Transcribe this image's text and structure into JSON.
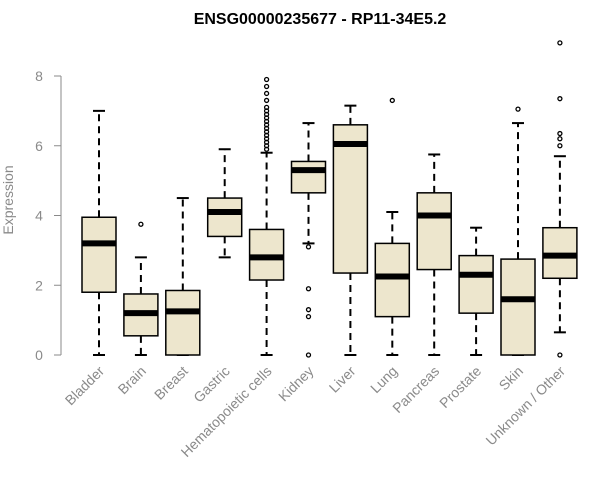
{
  "chart_data": {
    "type": "boxplot",
    "title": "ENSG00000235677 - RP11-34E5.2",
    "xlabel": "",
    "ylabel": "Expression",
    "ylim": [
      0,
      8
    ],
    "yticks": [
      0,
      2,
      4,
      6,
      8
    ],
    "categories": [
      "Bladder",
      "Brain",
      "Breast",
      "Gastric",
      "Hematopoietic cells",
      "Kidney",
      "Liver",
      "Lung",
      "Pancreas",
      "Prostate",
      "Skin",
      "Unknown / Other"
    ],
    "boxes": [
      {
        "label": "Bladder",
        "whisker_low": 0.0,
        "q1": 1.8,
        "median": 3.2,
        "q3": 3.95,
        "whisker_high": 7.0,
        "outliers": []
      },
      {
        "label": "Brain",
        "whisker_low": 0.0,
        "q1": 0.55,
        "median": 1.2,
        "q3": 1.75,
        "whisker_high": 2.8,
        "outliers": [
          3.75
        ]
      },
      {
        "label": "Breast",
        "whisker_low": 0.0,
        "q1": 0.0,
        "median": 1.25,
        "q3": 1.85,
        "whisker_high": 4.5,
        "outliers": []
      },
      {
        "label": "Gastric",
        "whisker_low": 2.8,
        "q1": 3.4,
        "median": 4.1,
        "q3": 4.5,
        "whisker_high": 5.9,
        "outliers": []
      },
      {
        "label": "Hematopoietic cells",
        "whisker_low": 0.0,
        "q1": 2.15,
        "median": 2.8,
        "q3": 3.6,
        "whisker_high": 5.8,
        "outliers": [
          5.9,
          6.0,
          6.1,
          6.2,
          6.3,
          6.4,
          6.5,
          6.6,
          6.7,
          6.8,
          6.9,
          7.0,
          7.1,
          7.3,
          7.5,
          7.7,
          7.9
        ]
      },
      {
        "label": "Kidney",
        "whisker_low": 3.2,
        "q1": 4.65,
        "median": 5.3,
        "q3": 5.55,
        "whisker_high": 6.65,
        "outliers": [
          0.0,
          1.1,
          1.3,
          1.9,
          3.1
        ]
      },
      {
        "label": "Liver",
        "whisker_low": 0.0,
        "q1": 2.35,
        "median": 6.05,
        "q3": 6.6,
        "whisker_high": 7.15,
        "outliers": []
      },
      {
        "label": "Lung",
        "whisker_low": 0.0,
        "q1": 1.1,
        "median": 2.25,
        "q3": 3.2,
        "whisker_high": 4.1,
        "outliers": [
          7.3
        ]
      },
      {
        "label": "Pancreas",
        "whisker_low": 0.0,
        "q1": 2.45,
        "median": 4.0,
        "q3": 4.65,
        "whisker_high": 5.75,
        "outliers": []
      },
      {
        "label": "Prostate",
        "whisker_low": 0.0,
        "q1": 1.2,
        "median": 2.3,
        "q3": 2.85,
        "whisker_high": 3.65,
        "outliers": []
      },
      {
        "label": "Skin",
        "whisker_low": 0.0,
        "q1": 0.0,
        "median": 1.6,
        "q3": 2.75,
        "whisker_high": 6.65,
        "outliers": [
          7.05
        ]
      },
      {
        "label": "Unknown / Other",
        "whisker_low": 0.65,
        "q1": 2.2,
        "median": 2.85,
        "q3": 3.65,
        "whisker_high": 5.7,
        "outliers": [
          0.0,
          6.0,
          6.2,
          6.35,
          7.35,
          8.95
        ]
      }
    ],
    "colors": {
      "box_fill": "#ede6cd",
      "stroke": "#000000",
      "axis": "#8a8a8a"
    },
    "grid": false
  }
}
